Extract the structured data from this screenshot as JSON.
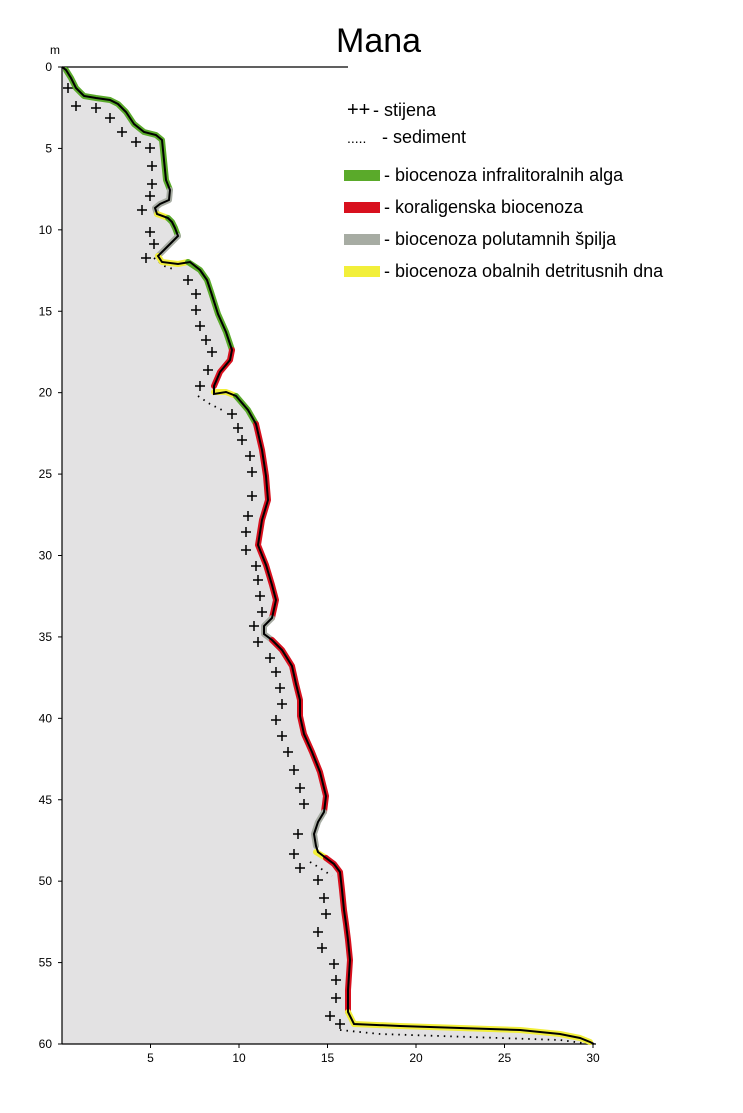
{
  "title": "Mana",
  "y_unit": "m",
  "x_ticks": [
    "5",
    "10",
    "15",
    "20",
    "25",
    "30"
  ],
  "y_ticks": [
    "0",
    "5",
    "10",
    "15",
    "20",
    "25",
    "30",
    "35",
    "40",
    "45",
    "50",
    "55",
    "60"
  ],
  "legend": [
    {
      "key": "rock",
      "marker": "++",
      "label": "- stijena"
    },
    {
      "key": "sediment",
      "marker": ".....",
      "label": "- sediment"
    },
    {
      "key": "algae",
      "color": "#5aaa2a",
      "label": "- biocenoza infralitoralnih alga"
    },
    {
      "key": "coral",
      "color": "#d8101e",
      "label": "- koraligenska biocenoza"
    },
    {
      "key": "cave",
      "color": "#a7aca3",
      "label": "- biocenoza polutamnih špilja"
    },
    {
      "key": "detritus",
      "color": "#f2ef3a",
      "label": "- biocenoza obalnih detritusnih dna"
    }
  ],
  "colors": {
    "water_fill": "#e3e2e3",
    "profile": "#000000",
    "algae": "#5aaa2a",
    "coral": "#d8101e",
    "cave": "#a7aca3",
    "detritus": "#f2ef3a"
  },
  "axes": {
    "x_range": [
      0,
      30
    ],
    "y_range": [
      0,
      60
    ],
    "y_inverted": true
  }
}
